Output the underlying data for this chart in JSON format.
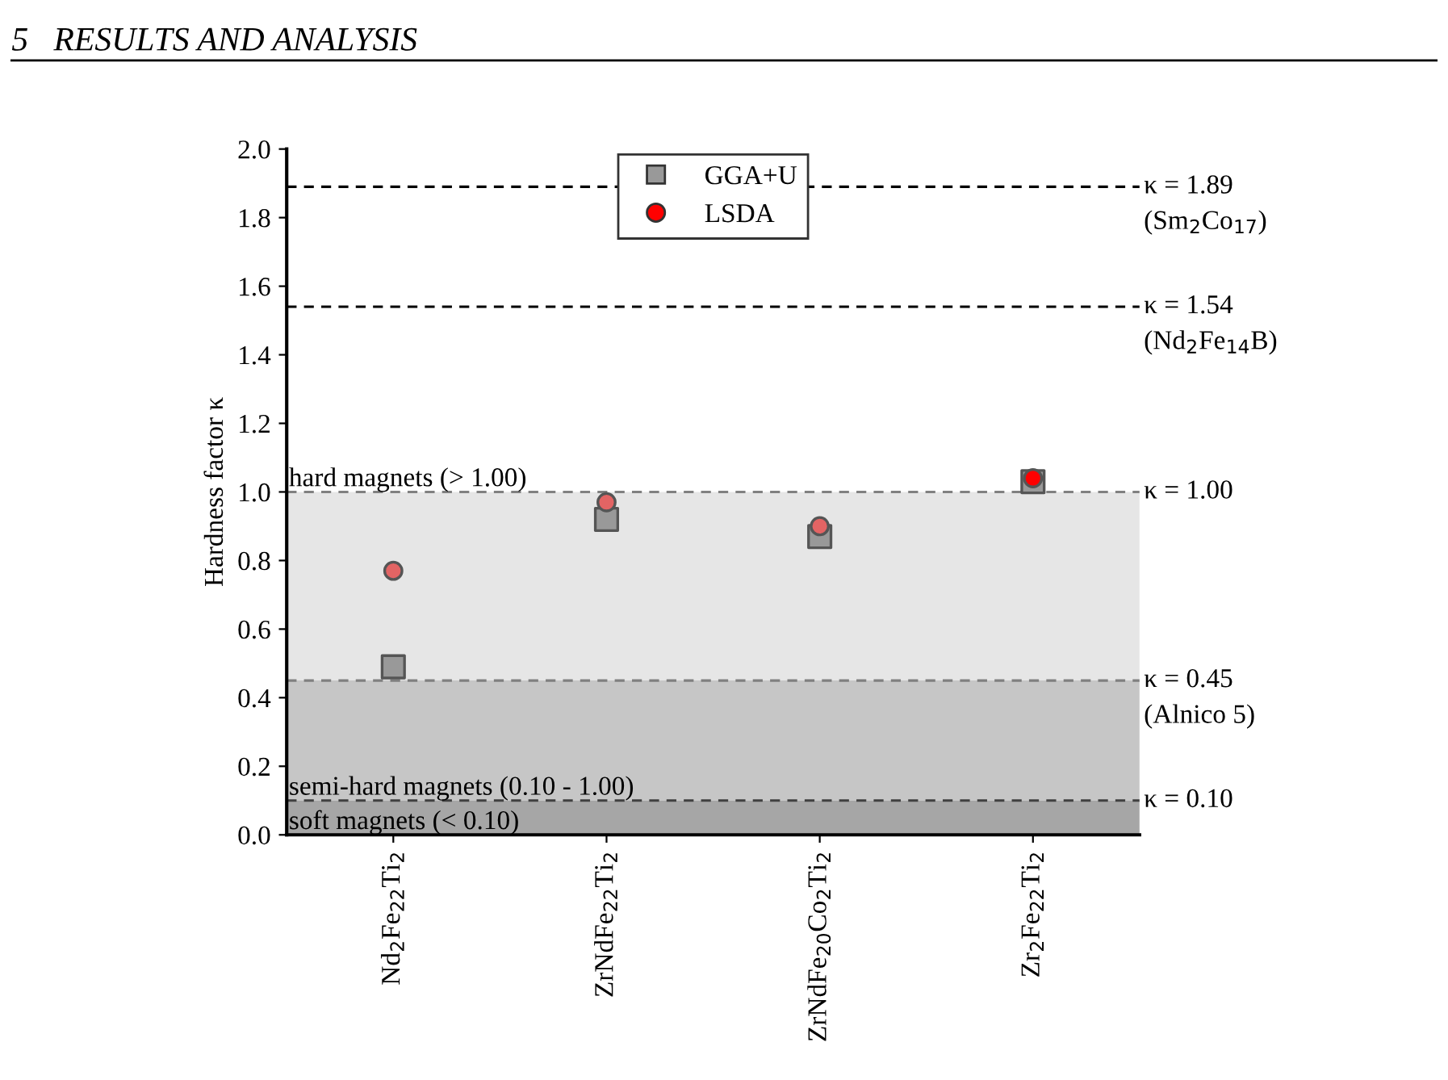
{
  "chart_data": {
    "type": "scatter",
    "ylabel": "Hardness factor κ",
    "categories": [
      "Nd$_{2}$Fe$_{22}$Ti$_{2}$",
      "ZrNdFe$_{22}$Ti$_{2}$",
      "ZrNdFe$_{20}$Co$_{2}$Ti$_{2}$",
      "Zr$_{2}$Fe$_{22}$Ti$_{2}$"
    ],
    "series": [
      {
        "name": "GGA+U",
        "color": "#999999",
        "marker": "square",
        "values": [
          0.49,
          0.92,
          0.87,
          1.03
        ]
      },
      {
        "name": "LSDA",
        "color": "#ff0000",
        "colors": [
          "#e36464",
          "#e36464",
          "#e36464",
          "#ff0000"
        ],
        "marker": "circle",
        "values": [
          0.77,
          0.97,
          0.9,
          1.04
        ]
      }
    ],
    "ylim": [
      0.0,
      2.0
    ],
    "yticks": [
      {
        "value": 0.0,
        "label": "0.0"
      },
      {
        "value": 0.2,
        "label": "0.2"
      },
      {
        "value": 0.4,
        "label": "0.4"
      },
      {
        "value": 0.6,
        "label": "0.6"
      },
      {
        "value": 0.8,
        "label": "0.8"
      },
      {
        "value": 1.0,
        "label": "1.0"
      },
      {
        "value": 1.2,
        "label": "1.2"
      },
      {
        "value": 1.4,
        "label": "1.4"
      },
      {
        "value": 1.6,
        "label": "1.6"
      },
      {
        "value": 1.8,
        "label": "1.8"
      },
      {
        "value": 2.0,
        "label": "2.0"
      }
    ],
    "bands": [
      {
        "axis": "y",
        "from": 0.45,
        "to": 1.0,
        "color": "#e6e6e6"
      },
      {
        "axis": "y",
        "from": 0.1,
        "to": 0.45,
        "color": "#c6c6c6"
      },
      {
        "axis": "y",
        "from": 0.0,
        "to": 0.1,
        "color": "#a6a6a6"
      }
    ],
    "ref_lines": [
      {
        "axis": "y",
        "value": 1.89,
        "label": "κ = 1.89\n(Sm$_{2}$Co$_{17}$)",
        "color": "#000000",
        "line_style": "dashed"
      },
      {
        "axis": "y",
        "value": 1.54,
        "label": "κ = 1.54\n(Nd$_{2}$Fe$_{14}$B)",
        "color": "#000000",
        "line_style": "dashed"
      },
      {
        "axis": "y",
        "value": 1.0,
        "label": "κ = 1.00",
        "color": "#808080",
        "line_style": "dashed"
      },
      {
        "axis": "y",
        "value": 0.45,
        "label": "κ = 0.45\n(Alnico 5)",
        "color": "#808080",
        "line_style": "dashed"
      },
      {
        "axis": "y",
        "value": 0.1,
        "label": "κ = 0.10",
        "color": "#404040",
        "line_style": "dashed"
      }
    ],
    "annotations": [
      "5   RESULTS AND ANALYSIS",
      {
        "text": "hard magnets (> 1.00)",
        "y": 1.0
      },
      {
        "text": "semi-hard magnets (0.10 - 1.00)",
        "y": 0.1
      },
      {
        "text": "soft magnets (< 0.10)",
        "y": 0.0
      }
    ],
    "legend": "top",
    "grid": false
  }
}
